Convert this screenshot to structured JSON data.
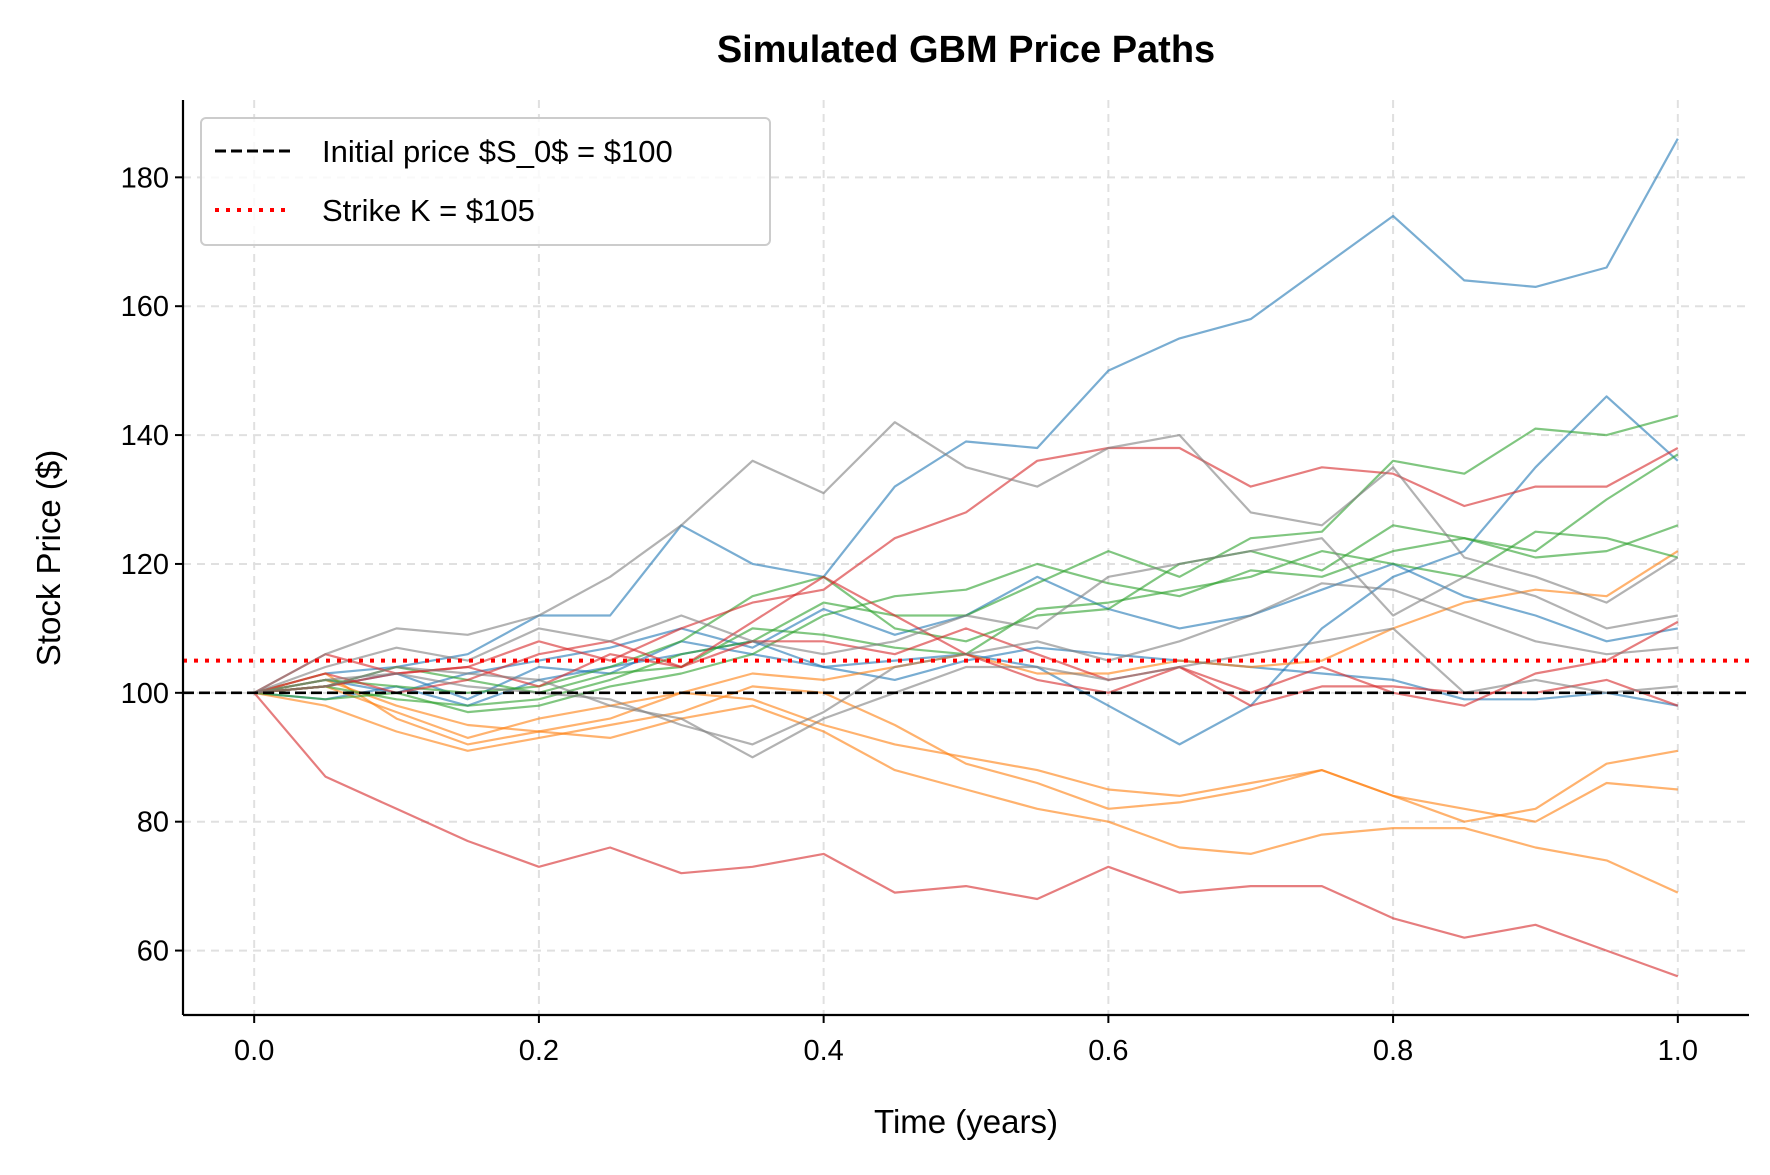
{
  "chart_data": {
    "type": "line",
    "title": "Simulated GBM Price Paths",
    "xlabel": "Time (years)",
    "ylabel": "Stock Price ($)",
    "xlim": [
      -0.05,
      1.05
    ],
    "ylim": [
      50,
      192
    ],
    "xticks": [
      "0.0",
      "0.2",
      "0.4",
      "0.6",
      "0.8",
      "1.0"
    ],
    "yticks": [
      "60",
      "80",
      "100",
      "120",
      "140",
      "160",
      "180"
    ],
    "grid": true,
    "legend_position": "top-left",
    "x": [
      0,
      0.05,
      0.1,
      0.15,
      0.2,
      0.25,
      0.3,
      0.35,
      0.4,
      0.45,
      0.5,
      0.55,
      0.6,
      0.65,
      0.7,
      0.75,
      0.8,
      0.85,
      0.9,
      0.95,
      1.0
    ],
    "series": [
      {
        "color": "#1f77b4",
        "values": [
          100,
          103,
          104,
          106,
          112,
          112,
          126,
          120,
          118,
          132,
          139,
          138,
          150,
          155,
          158,
          166,
          174,
          164,
          163,
          166,
          186
        ]
      },
      {
        "color": "#1f77b4",
        "values": [
          100,
          101,
          103,
          99,
          104,
          103,
          108,
          106,
          104,
          105,
          106,
          104,
          98,
          92,
          98,
          110,
          118,
          122,
          135,
          146,
          136
        ]
      },
      {
        "color": "#1f77b4",
        "values": [
          100,
          102,
          100,
          103,
          105,
          107,
          110,
          107,
          113,
          109,
          112,
          118,
          113,
          110,
          112,
          116,
          120,
          115,
          112,
          108,
          110
        ]
      },
      {
        "color": "#1f77b4",
        "values": [
          100,
          99,
          101,
          98,
          102,
          104,
          106,
          108,
          104,
          102,
          105,
          107,
          106,
          105,
          104,
          103,
          102,
          99,
          99,
          100,
          98
        ]
      },
      {
        "color": "#ff7f0e",
        "values": [
          100,
          102,
          98,
          95,
          94,
          96,
          100,
          103,
          102,
          104,
          106,
          103,
          103,
          105,
          104,
          105,
          110,
          114,
          116,
          115,
          122
        ]
      },
      {
        "color": "#ff7f0e",
        "values": [
          100,
          101,
          97,
          93,
          96,
          98,
          100,
          99,
          95,
          92,
          90,
          88,
          85,
          84,
          86,
          88,
          84,
          80,
          82,
          89,
          91
        ]
      },
      {
        "color": "#ff7f0e",
        "values": [
          100,
          98,
          94,
          91,
          93,
          95,
          97,
          101,
          100,
          95,
          89,
          86,
          82,
          83,
          85,
          88,
          84,
          82,
          80,
          86,
          85
        ]
      },
      {
        "color": "#ff7f0e",
        "values": [
          100,
          103,
          96,
          92,
          94,
          93,
          96,
          98,
          94,
          88,
          85,
          82,
          80,
          76,
          75,
          78,
          79,
          79,
          76,
          74,
          69
        ]
      },
      {
        "color": "#2ca02c",
        "values": [
          100,
          101,
          99,
          98,
          99,
          102,
          106,
          108,
          114,
          112,
          112,
          117,
          122,
          118,
          124,
          125,
          136,
          134,
          141,
          140,
          143
        ]
      },
      {
        "color": "#2ca02c",
        "values": [
          100,
          102,
          101,
          100,
          101,
          104,
          108,
          115,
          118,
          110,
          108,
          112,
          113,
          120,
          122,
          119,
          126,
          124,
          122,
          130,
          137
        ]
      },
      {
        "color": "#2ca02c",
        "values": [
          100,
          99,
          100,
          97,
          98,
          101,
          103,
          106,
          112,
          115,
          116,
          120,
          117,
          115,
          119,
          118,
          122,
          124,
          121,
          122,
          126
        ]
      },
      {
        "color": "#2ca02c",
        "values": [
          100,
          101,
          104,
          102,
          100,
          103,
          104,
          110,
          109,
          107,
          106,
          113,
          114,
          116,
          118,
          122,
          120,
          118,
          125,
          124,
          121
        ]
      },
      {
        "color": "#d62728",
        "values": [
          100,
          106,
          103,
          104,
          108,
          105,
          110,
          114,
          116,
          124,
          128,
          136,
          138,
          138,
          132,
          135,
          134,
          129,
          132,
          132,
          138
        ]
      },
      {
        "color": "#d62728",
        "values": [
          100,
          103,
          100,
          102,
          106,
          108,
          104,
          108,
          108,
          106,
          110,
          106,
          102,
          104,
          100,
          104,
          100,
          98,
          103,
          105,
          111
        ]
      },
      {
        "color": "#d62728",
        "values": [
          100,
          101,
          103,
          104,
          101,
          106,
          104,
          111,
          118,
          112,
          106,
          102,
          100,
          104,
          98,
          101,
          101,
          100,
          100,
          102,
          98
        ]
      },
      {
        "color": "#d62728",
        "values": [
          100,
          87,
          82,
          77,
          73,
          76,
          72,
          73,
          75,
          69,
          70,
          68,
          73,
          69,
          70,
          70,
          65,
          62,
          64,
          60,
          56
        ]
      },
      {
        "color": "#7f7f7f",
        "values": [
          100,
          106,
          110,
          109,
          112,
          118,
          126,
          136,
          131,
          142,
          135,
          132,
          138,
          140,
          128,
          126,
          135,
          121,
          118,
          114,
          121
        ]
      },
      {
        "color": "#7f7f7f",
        "values": [
          100,
          104,
          107,
          105,
          110,
          108,
          112,
          108,
          106,
          108,
          112,
          110,
          118,
          120,
          122,
          124,
          112,
          118,
          115,
          110,
          112
        ]
      },
      {
        "color": "#7f7f7f",
        "values": [
          100,
          102,
          103,
          101,
          100,
          99,
          95,
          92,
          97,
          104,
          106,
          108,
          105,
          108,
          112,
          117,
          116,
          112,
          108,
          106,
          107
        ]
      },
      {
        "color": "#7f7f7f",
        "values": [
          100,
          101,
          104,
          103,
          102,
          98,
          96,
          90,
          96,
          100,
          104,
          104,
          102,
          104,
          106,
          108,
          110,
          100,
          102,
          100,
          101
        ]
      }
    ],
    "reference_lines": [
      {
        "name": "Initial price $S_0$ = $100",
        "value": 100,
        "color": "#000000",
        "style": "dashed"
      },
      {
        "name": "Strike K = $105",
        "value": 105,
        "color": "#ff0000",
        "style": "dotted"
      }
    ]
  }
}
